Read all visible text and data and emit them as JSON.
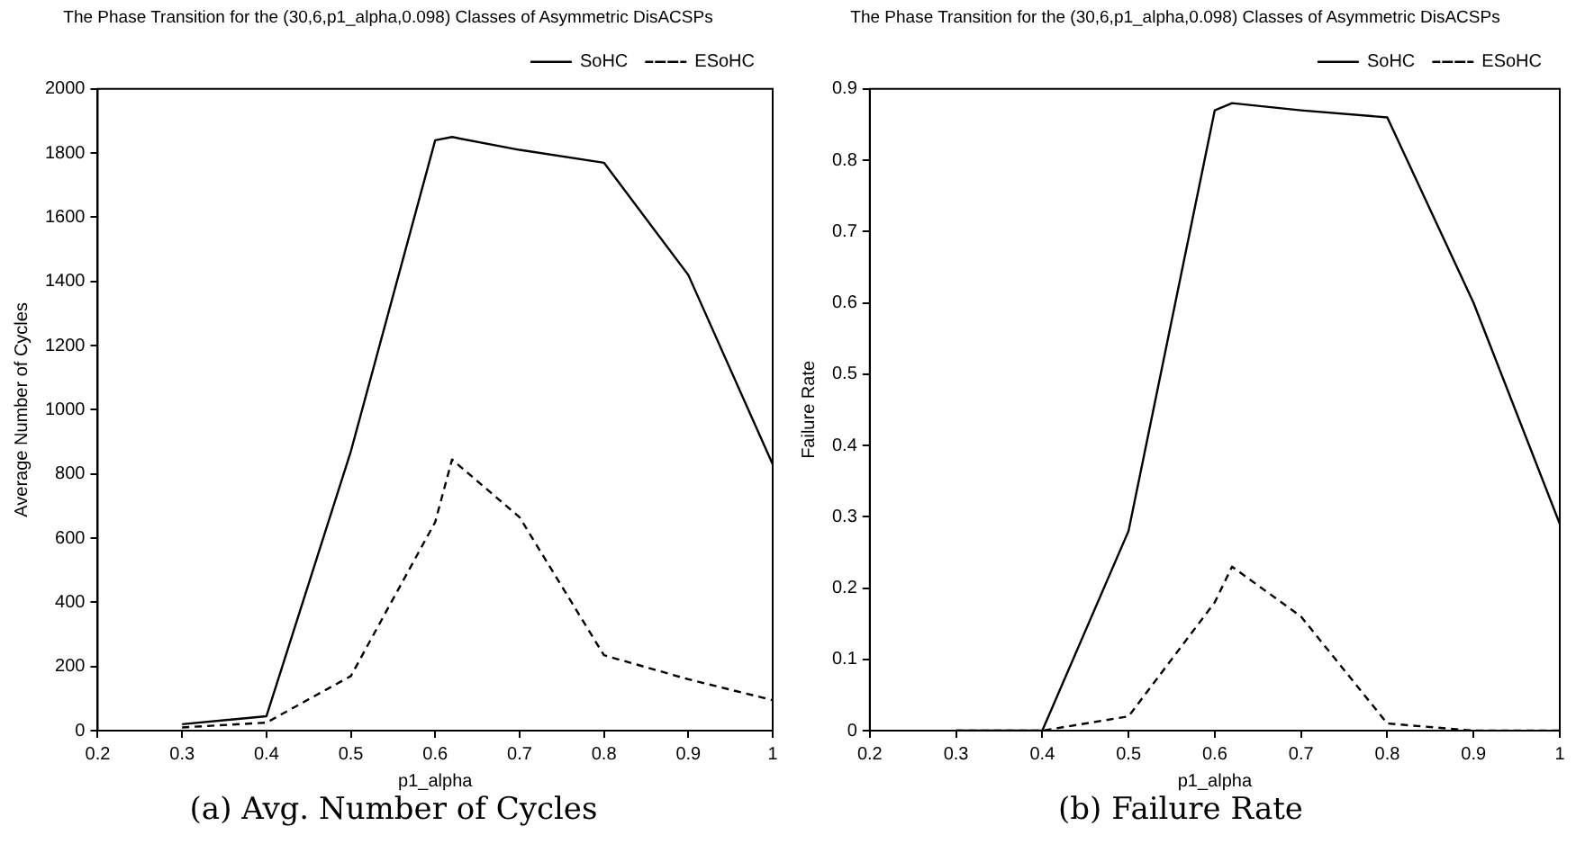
{
  "chart_data": [
    {
      "type": "line",
      "title": "The Phase Transition for the (30,6,p1_alpha,0.098) Classes of Asymmetric DisACSPs",
      "xlabel": "p1_alpha",
      "ylabel": "Average Number of Cycles",
      "annotations": [
        "(a) Avg. Number of Cycles"
      ],
      "legend": "top right",
      "marker": "none",
      "grid": false,
      "x": [
        0.3,
        0.4,
        0.5,
        0.6,
        0.62,
        0.7,
        0.8,
        0.9,
        1
      ],
      "series": [
        {
          "name": "SoHC",
          "color": "#000000",
          "line_style": "solid",
          "values": [
            20,
            45,
            870,
            1840,
            1850,
            1810,
            1770,
            1420,
            830
          ]
        },
        {
          "name": "ESoHC",
          "color": "#000000",
          "line_style": "dashed",
          "values": [
            10,
            25,
            170,
            650,
            845,
            665,
            235,
            160,
            95
          ]
        }
      ],
      "xlim": [
        0.2,
        1
      ],
      "xticks": [
        0.2,
        0.3,
        0.4,
        0.5,
        0.6,
        0.7,
        0.8,
        0.9,
        1
      ],
      "ylim": [
        0,
        2000
      ],
      "yticks": [
        0,
        200,
        400,
        600,
        800,
        1000,
        1200,
        1400,
        1600,
        1800,
        2000
      ]
    },
    {
      "type": "line",
      "title": "The Phase Transition for the (30,6,p1_alpha,0.098) Classes of Asymmetric DisACSPs",
      "xlabel": "p1_alpha",
      "ylabel": "Failure Rate",
      "annotations": [
        "(b) Failure Rate"
      ],
      "legend": "top right",
      "marker": "none",
      "grid": false,
      "x": [
        0.3,
        0.4,
        0.5,
        0.6,
        0.62,
        0.7,
        0.8,
        0.9,
        1
      ],
      "series": [
        {
          "name": "SoHC",
          "color": "#000000",
          "line_style": "solid",
          "values": [
            0,
            0,
            0.28,
            0.87,
            0.88,
            0.87,
            0.86,
            0.6,
            0.29
          ]
        },
        {
          "name": "ESoHC",
          "color": "#000000",
          "line_style": "dashed",
          "values": [
            0,
            0,
            0.02,
            0.18,
            0.23,
            0.16,
            0.01,
            0,
            0
          ]
        }
      ],
      "xlim": [
        0.2,
        1
      ],
      "xticks": [
        0.2,
        0.3,
        0.4,
        0.5,
        0.6,
        0.7,
        0.8,
        0.9,
        1
      ],
      "ylim": [
        0,
        0.9
      ],
      "yticks": [
        0,
        0.1,
        0.2,
        0.3,
        0.4,
        0.5,
        0.6,
        0.7,
        0.8,
        0.9
      ]
    }
  ]
}
